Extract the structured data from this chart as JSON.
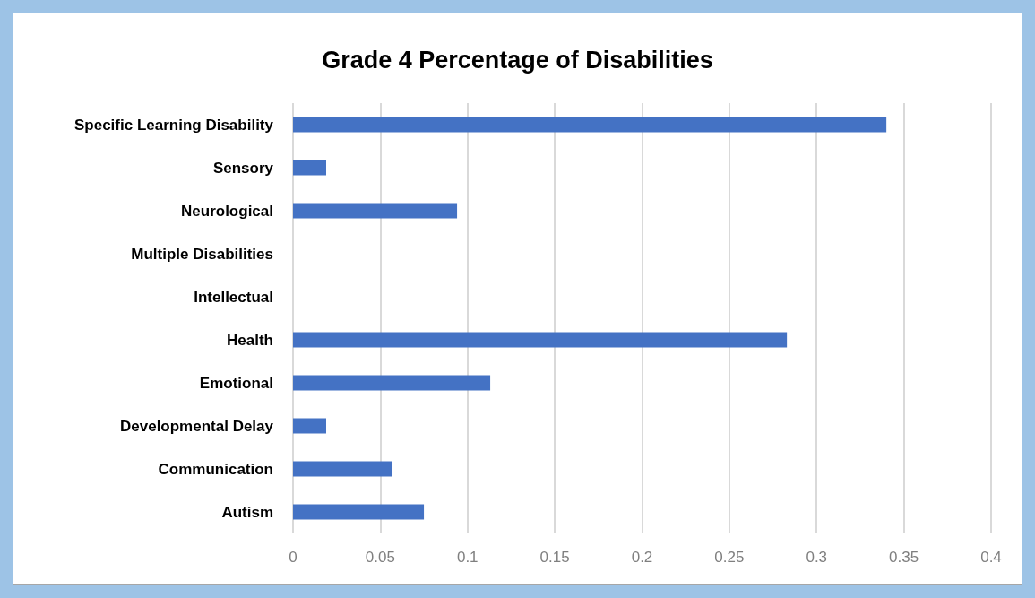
{
  "chart_data": {
    "type": "bar",
    "orientation": "horizontal",
    "title": "Grade 4 Percentage of Disabilities",
    "categories": [
      "Specific Learning Disability",
      "Sensory",
      "Neurological",
      "Multiple Disabilities",
      "Intellectual",
      "Health",
      "Emotional",
      "Developmental Delay",
      "Communication",
      "Autism"
    ],
    "values": [
      0.34,
      0.019,
      0.094,
      0,
      0,
      0.283,
      0.113,
      0.019,
      0.057,
      0.075
    ],
    "color": "#4472c4",
    "xlim": [
      0,
      0.4
    ],
    "xticks": [
      0,
      0.05,
      0.1,
      0.15,
      0.2,
      0.25,
      0.3,
      0.35,
      0.4
    ],
    "grid": "x"
  }
}
